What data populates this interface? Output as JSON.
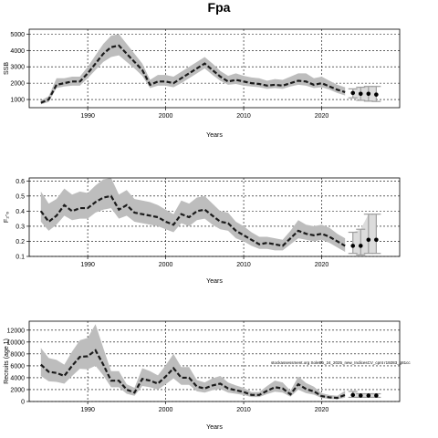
{
  "figure": {
    "title": "Fpa",
    "note": "stockassessment.org SoleBb_24_2025_new_IndicesCV_cpnt r19283_g81cc"
  },
  "chart_data": [
    {
      "type": "line",
      "name": "ssb",
      "xlabel": "Years",
      "ylabel": "SSB",
      "xlim": [
        1982.5,
        2030
      ],
      "ylim": [
        500,
        5300
      ],
      "xticks": [
        1990,
        2000,
        2010,
        2020
      ],
      "yticks": [
        1000,
        2000,
        3000,
        4000,
        5000
      ],
      "grid": true,
      "x": [
        1984,
        1985,
        1986,
        1987,
        1988,
        1989,
        1990,
        1991,
        1992,
        1993,
        1994,
        1995,
        1996,
        1997,
        1998,
        1999,
        2000,
        2001,
        2002,
        2003,
        2004,
        2005,
        2006,
        2007,
        2008,
        2009,
        2010,
        2011,
        2012,
        2013,
        2014,
        2015,
        2016,
        2017,
        2018,
        2019,
        2020,
        2021,
        2022,
        2023
      ],
      "values": [
        800,
        1000,
        1900,
        2000,
        2100,
        2100,
        2600,
        3200,
        3800,
        4200,
        4300,
        3800,
        3300,
        2800,
        1900,
        2100,
        2100,
        2000,
        2300,
        2600,
        2900,
        3200,
        2800,
        2400,
        2100,
        2200,
        2100,
        2000,
        1950,
        1850,
        1900,
        1850,
        2000,
        2150,
        2100,
        1900,
        2000,
        1800,
        1600,
        1450
      ],
      "lower": [
        700,
        850,
        1700,
        1800,
        1850,
        1850,
        2300,
        2800,
        3300,
        3600,
        3700,
        3300,
        2900,
        2450,
        1700,
        1850,
        1850,
        1750,
        2000,
        2300,
        2600,
        2900,
        2500,
        2150,
        1900,
        1950,
        1850,
        1800,
        1750,
        1650,
        1700,
        1650,
        1800,
        1900,
        1850,
        1700,
        1750,
        1600,
        1400,
        1250
      ],
      "upper": [
        950,
        1200,
        2300,
        2300,
        2400,
        2400,
        3000,
        3700,
        4400,
        4900,
        5000,
        4400,
        3800,
        3200,
        2200,
        2500,
        2500,
        2400,
        2700,
        3000,
        3300,
        3600,
        3200,
        2750,
        2450,
        2600,
        2450,
        2350,
        2300,
        2150,
        2250,
        2200,
        2400,
        2600,
        2600,
        2300,
        2400,
        2150,
        1900,
        1750
      ],
      "projection": {
        "x": [
          2024,
          2025,
          2026,
          2027
        ],
        "values": [
          1400,
          1350,
          1350,
          1300
        ],
        "lower": [
          1100,
          950,
          900,
          880
        ],
        "upper": [
          1650,
          1750,
          1800,
          1800
        ]
      }
    },
    {
      "type": "line",
      "name": "fbar",
      "xlabel": "Years",
      "ylabel": "F₂-₆",
      "xlim": [
        1982.5,
        2030
      ],
      "ylim": [
        0.1,
        0.62
      ],
      "xticks": [
        1990,
        2000,
        2010,
        2020
      ],
      "yticks": [
        0.1,
        0.2,
        0.3,
        0.4,
        0.5,
        0.6
      ],
      "ytick_labels": [
        "0.1",
        "0.2",
        "0.3",
        "0.4",
        "0.5",
        "0.6"
      ],
      "grid": true,
      "x": [
        1984,
        1985,
        1986,
        1987,
        1988,
        1989,
        1990,
        1991,
        1992,
        1993,
        1994,
        1995,
        1996,
        1997,
        1998,
        1999,
        2000,
        2001,
        2002,
        2003,
        2004,
        2005,
        2006,
        2007,
        2008,
        2009,
        2010,
        2011,
        2012,
        2013,
        2014,
        2015,
        2016,
        2017,
        2018,
        2019,
        2020,
        2021,
        2022,
        2023
      ],
      "values": [
        0.4,
        0.33,
        0.37,
        0.44,
        0.4,
        0.42,
        0.42,
        0.46,
        0.49,
        0.5,
        0.41,
        0.44,
        0.39,
        0.38,
        0.37,
        0.36,
        0.33,
        0.31,
        0.38,
        0.36,
        0.4,
        0.41,
        0.37,
        0.33,
        0.32,
        0.27,
        0.24,
        0.21,
        0.18,
        0.19,
        0.18,
        0.17,
        0.22,
        0.27,
        0.25,
        0.24,
        0.25,
        0.23,
        0.2,
        0.17
      ],
      "lower": [
        0.33,
        0.27,
        0.31,
        0.37,
        0.34,
        0.35,
        0.35,
        0.39,
        0.41,
        0.42,
        0.35,
        0.37,
        0.33,
        0.32,
        0.31,
        0.3,
        0.28,
        0.26,
        0.32,
        0.3,
        0.34,
        0.35,
        0.31,
        0.28,
        0.27,
        0.22,
        0.2,
        0.17,
        0.15,
        0.15,
        0.14,
        0.14,
        0.18,
        0.22,
        0.21,
        0.2,
        0.21,
        0.19,
        0.16,
        0.13
      ],
      "upper": [
        0.53,
        0.45,
        0.48,
        0.55,
        0.51,
        0.53,
        0.52,
        0.57,
        0.61,
        0.62,
        0.51,
        0.54,
        0.48,
        0.47,
        0.46,
        0.44,
        0.41,
        0.38,
        0.47,
        0.45,
        0.49,
        0.5,
        0.45,
        0.4,
        0.39,
        0.33,
        0.3,
        0.26,
        0.23,
        0.23,
        0.22,
        0.21,
        0.27,
        0.34,
        0.31,
        0.3,
        0.31,
        0.29,
        0.25,
        0.22
      ],
      "projection": {
        "x": [
          2024,
          2025,
          2026,
          2027
        ],
        "values": [
          0.17,
          0.17,
          0.21,
          0.21
        ],
        "lower": [
          0.12,
          0.11,
          0.12,
          0.12
        ],
        "upper": [
          0.26,
          0.28,
          0.38,
          0.38
        ]
      }
    },
    {
      "type": "line",
      "name": "recruits",
      "xlabel": "Years",
      "ylabel": "Recruits (age 1)",
      "xlim": [
        1982.5,
        2030
      ],
      "ylim": [
        0,
        13500
      ],
      "xticks": [
        1990,
        2000,
        2010,
        2020
      ],
      "yticks": [
        0,
        2000,
        4000,
        6000,
        8000,
        10000,
        12000
      ],
      "grid": true,
      "x": [
        1984,
        1985,
        1986,
        1987,
        1988,
        1989,
        1990,
        1991,
        1992,
        1993,
        1994,
        1995,
        1996,
        1997,
        1998,
        1999,
        2000,
        2001,
        2002,
        2003,
        2004,
        2005,
        2006,
        2007,
        2008,
        2009,
        2010,
        2011,
        2012,
        2013,
        2014,
        2015,
        2016,
        2017,
        2018,
        2019,
        2020,
        2021,
        2022,
        2023
      ],
      "values": [
        6200,
        5000,
        4800,
        4300,
        6000,
        7500,
        7600,
        8600,
        6200,
        3500,
        3500,
        2000,
        1500,
        3800,
        3500,
        3000,
        4200,
        5600,
        4000,
        4000,
        2500,
        2200,
        2700,
        3000,
        2200,
        1900,
        1600,
        1100,
        1100,
        1800,
        2400,
        2200,
        1200,
        2900,
        2100,
        1700,
        900,
        700,
        600,
        1100
      ],
      "lower": [
        4300,
        3400,
        3300,
        3000,
        4300,
        5500,
        5400,
        6000,
        4400,
        2400,
        2400,
        1300,
        950,
        2600,
        2400,
        2000,
        2900,
        3900,
        2800,
        2800,
        1700,
        1500,
        1900,
        2100,
        1500,
        1300,
        1100,
        750,
        750,
        1250,
        1650,
        1500,
        800,
        2000,
        1400,
        1150,
        600,
        450,
        380,
        650
      ],
      "upper": [
        9000,
        7300,
        7000,
        6200,
        8400,
        10300,
        10700,
        13000,
        9000,
        5100,
        5100,
        2900,
        2300,
        5600,
        5100,
        4400,
        6100,
        8000,
        5800,
        5800,
        3600,
        3200,
        3900,
        4300,
        3200,
        2700,
        2300,
        1600,
        1600,
        2600,
        3500,
        3200,
        1800,
        4200,
        3100,
        2500,
        1400,
        1100,
        950,
        1800
      ],
      "projection": {
        "x": [
          2024,
          2025,
          2026,
          2027
        ],
        "values": [
          1100,
          1000,
          1000,
          1000
        ],
        "lower": [
          700,
          700,
          700,
          700
        ],
        "upper": [
          1700,
          1300,
          1300,
          1300
        ]
      }
    }
  ]
}
